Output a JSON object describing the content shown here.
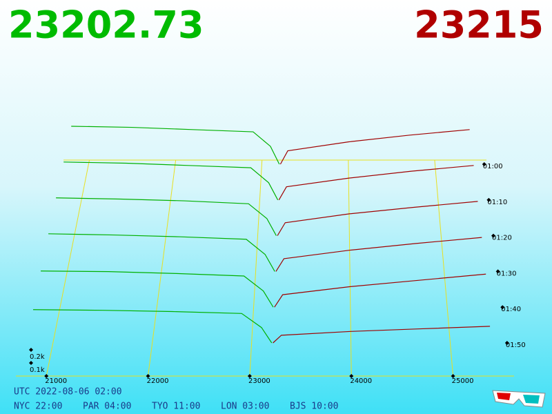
{
  "chart_data": {
    "type": "depth3d",
    "bid": 23202.73,
    "ask": 23215,
    "xlim": [
      20700,
      25600
    ],
    "xticks": [
      21000,
      22000,
      23000,
      24000,
      25000
    ],
    "zlim": [
      0,
      1600
    ],
    "zticks": [
      {
        "value": 100,
        "label": "0.1k"
      },
      {
        "value": 200,
        "label": "0.2k"
      }
    ],
    "times": [
      "01:00",
      "01:10",
      "01:20",
      "01:30",
      "01:40",
      "01:50"
    ],
    "bids": {
      "color": "#00b000",
      "prices": [
        20800,
        21500,
        22200,
        22900,
        23100,
        23202.73
      ],
      "depth": [
        [
          340,
          330,
          310,
          290,
          160,
          0
        ],
        [
          330,
          320,
          300,
          280,
          150,
          0
        ],
        [
          320,
          310,
          295,
          270,
          145,
          0
        ],
        [
          310,
          300,
          285,
          265,
          140,
          0
        ],
        [
          290,
          285,
          270,
          250,
          130,
          0
        ],
        [
          260,
          255,
          245,
          230,
          120,
          0
        ]
      ]
    },
    "asks": {
      "color": "#a00000",
      "prices": [
        23215,
        23300,
        24000,
        24700,
        25400
      ],
      "depth": [
        [
          0,
          120,
          200,
          260,
          310
        ],
        [
          0,
          115,
          190,
          250,
          300
        ],
        [
          0,
          110,
          185,
          240,
          290
        ],
        [
          0,
          105,
          175,
          230,
          280
        ],
        [
          0,
          100,
          165,
          215,
          265
        ],
        [
          0,
          60,
          90,
          110,
          130
        ]
      ]
    },
    "utc": "UTC 2022-08-06 02:00",
    "zones": [
      "NYC 22:00",
      "PAR 04:00",
      "TYO 11:00",
      "LON 03:00",
      "BJS 10:00"
    ]
  }
}
